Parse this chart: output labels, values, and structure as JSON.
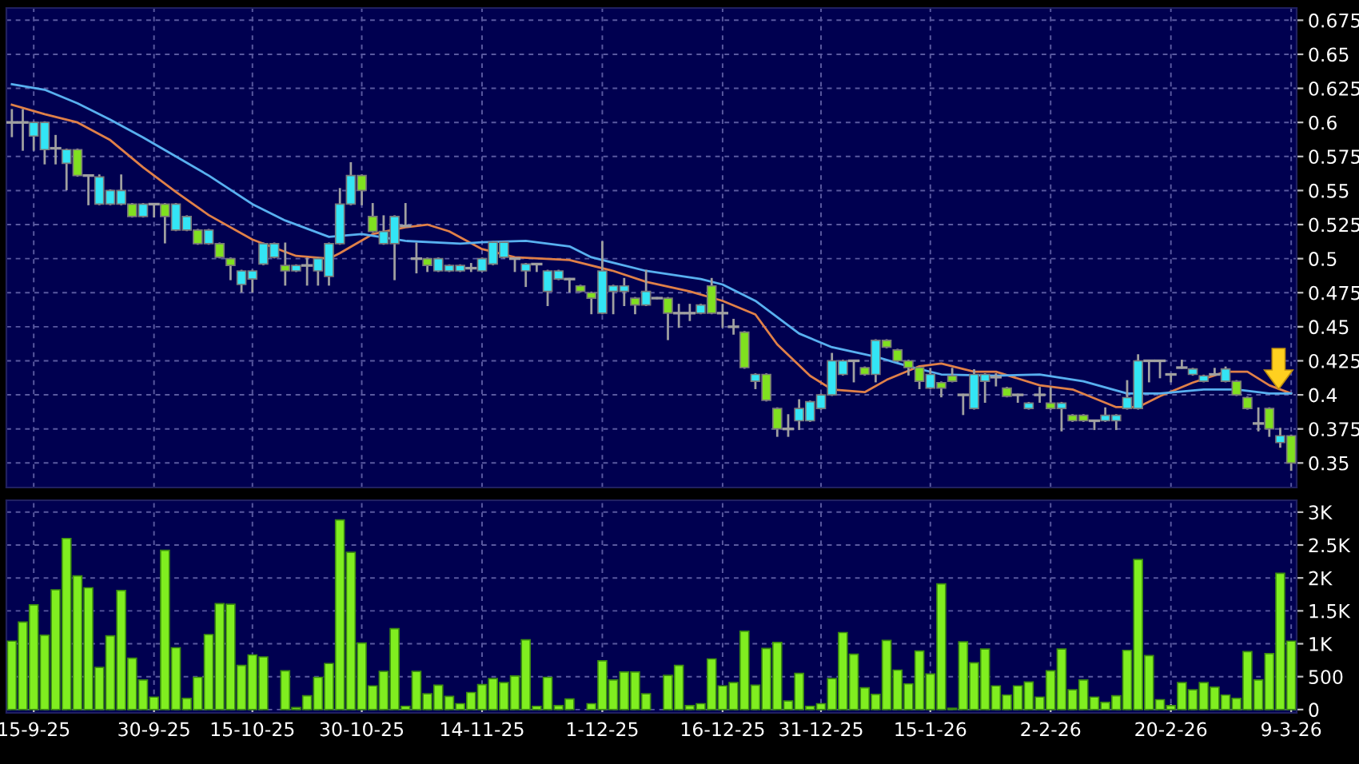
{
  "chart_data": [
    {
      "type": "candlestick",
      "categories": [
        null,
        null,
        null,
        null,
        null,
        null,
        null,
        null,
        null,
        null,
        null,
        null,
        null,
        null,
        null,
        null,
        null,
        null,
        null,
        null,
        null,
        null,
        null,
        null,
        null,
        null,
        null,
        null,
        null,
        null,
        null,
        null,
        null,
        null,
        null,
        null,
        null,
        null,
        null,
        null,
        null,
        null,
        null,
        null,
        null,
        null,
        null,
        null,
        null,
        null,
        null,
        null,
        null,
        null,
        null,
        null,
        null,
        null,
        null,
        null,
        null,
        null,
        null,
        null,
        null,
        null,
        null,
        null,
        null,
        null,
        null,
        null,
        null,
        null,
        null,
        null,
        null,
        null,
        null,
        null,
        null,
        null,
        null,
        null,
        null,
        null,
        null,
        null,
        null,
        null,
        null,
        null,
        null,
        null,
        null,
        null,
        null,
        null,
        null,
        null,
        null,
        null,
        null,
        null,
        null,
        null,
        null,
        null,
        null,
        null,
        null,
        null,
        null,
        null,
        null,
        null,
        null,
        null
      ],
      "ohlc": [
        [
          0.6,
          0.609,
          0.59,
          0.6
        ],
        [
          0.6,
          0.609,
          0.58,
          0.6
        ],
        [
          0.59,
          0.6,
          0.58,
          0.6
        ],
        [
          0.58,
          0.6,
          0.57,
          0.6
        ],
        [
          0.581,
          0.59,
          0.57,
          0.581
        ],
        [
          0.57,
          0.58,
          0.551,
          0.58
        ],
        [
          0.58,
          0.58,
          0.561,
          0.561
        ],
        [
          0.561,
          0.561,
          0.54,
          0.561
        ],
        [
          0.54,
          0.561,
          0.54,
          0.56
        ],
        [
          0.54,
          0.55,
          0.54,
          0.55
        ],
        [
          0.54,
          0.561,
          0.54,
          0.55
        ],
        [
          0.54,
          0.54,
          0.531,
          0.531
        ],
        [
          0.531,
          0.54,
          0.531,
          0.54
        ],
        [
          0.54,
          0.54,
          0.531,
          0.54
        ],
        [
          0.54,
          0.54,
          0.512,
          0.531
        ],
        [
          0.521,
          0.54,
          0.521,
          0.54
        ],
        [
          0.521,
          0.531,
          0.521,
          0.531
        ],
        [
          0.521,
          0.521,
          0.511,
          0.511
        ],
        [
          0.511,
          0.521,
          0.511,
          0.521
        ],
        [
          0.511,
          0.511,
          0.501,
          0.501
        ],
        [
          0.5,
          0.5,
          0.485,
          0.495
        ],
        [
          0.481,
          0.491,
          0.476,
          0.491
        ],
        [
          0.485,
          0.491,
          0.476,
          0.491
        ],
        [
          0.496,
          0.511,
          0.496,
          0.511
        ],
        [
          0.501,
          0.511,
          0.501,
          0.511
        ],
        [
          0.495,
          0.511,
          0.481,
          0.491
        ],
        [
          0.491,
          0.495,
          0.491,
          0.495
        ],
        [
          0.495,
          0.5,
          0.481,
          0.495
        ],
        [
          0.491,
          0.5,
          0.481,
          0.5
        ],
        [
          0.487,
          0.511,
          0.481,
          0.511
        ],
        [
          0.511,
          0.551,
          0.511,
          0.54
        ],
        [
          0.54,
          0.57,
          0.54,
          0.561
        ],
        [
          0.561,
          0.561,
          0.54,
          0.55
        ],
        [
          0.531,
          0.54,
          0.52,
          0.52
        ],
        [
          0.511,
          0.531,
          0.511,
          0.52
        ],
        [
          0.511,
          0.531,
          0.485,
          0.531
        ],
        [
          0.524,
          0.54,
          0.524,
          0.524
        ],
        [
          0.5,
          0.511,
          0.49,
          0.5
        ],
        [
          0.5,
          0.5,
          0.491,
          0.495
        ],
        [
          0.491,
          0.5,
          0.491,
          0.5
        ],
        [
          0.491,
          0.495,
          0.491,
          0.495
        ],
        [
          0.491,
          0.495,
          0.491,
          0.495
        ],
        [
          0.493,
          0.496,
          0.491,
          0.493
        ],
        [
          0.491,
          0.5,
          0.491,
          0.5
        ],
        [
          0.496,
          0.512,
          0.496,
          0.512
        ],
        [
          0.501,
          0.512,
          0.501,
          0.512
        ],
        [
          0.5,
          0.5,
          0.491,
          0.5
        ],
        [
          0.491,
          0.496,
          0.48,
          0.496
        ],
        [
          0.496,
          0.496,
          0.491,
          0.496
        ],
        [
          0.476,
          0.491,
          0.466,
          0.491
        ],
        [
          0.485,
          0.491,
          0.485,
          0.491
        ],
        [
          0.485,
          0.485,
          0.476,
          0.485
        ],
        [
          0.48,
          0.48,
          0.476,
          0.476
        ],
        [
          0.475,
          0.475,
          0.46,
          0.471
        ],
        [
          0.46,
          0.512,
          0.46,
          0.491
        ],
        [
          0.476,
          0.48,
          0.46,
          0.48
        ],
        [
          0.476,
          0.485,
          0.466,
          0.48
        ],
        [
          0.471,
          0.471,
          0.46,
          0.466
        ],
        [
          0.466,
          0.491,
          0.466,
          0.476
        ],
        [
          0.471,
          0.471,
          0.471,
          0.471
        ],
        [
          0.471,
          0.471,
          0.441,
          0.46
        ],
        [
          0.46,
          0.466,
          0.45,
          0.46
        ],
        [
          0.46,
          0.466,
          0.455,
          0.46
        ],
        [
          0.46,
          0.466,
          0.46,
          0.466
        ],
        [
          0.48,
          0.485,
          0.46,
          0.46
        ],
        [
          0.46,
          0.466,
          0.45,
          0.46
        ],
        [
          0.45,
          0.455,
          0.445,
          0.45
        ],
        [
          0.446,
          0.446,
          0.42,
          0.42
        ],
        [
          0.41,
          0.415,
          0.405,
          0.415
        ],
        [
          0.415,
          0.415,
          0.396,
          0.396
        ],
        [
          0.39,
          0.39,
          0.37,
          0.375
        ],
        [
          0.375,
          0.385,
          0.37,
          0.375
        ],
        [
          0.381,
          0.396,
          0.375,
          0.39
        ],
        [
          0.381,
          0.395,
          0.381,
          0.395
        ],
        [
          0.39,
          0.4,
          0.39,
          0.4
        ],
        [
          0.4,
          0.43,
          0.4,
          0.425
        ],
        [
          0.415,
          0.425,
          0.415,
          0.425
        ],
        [
          0.425,
          0.425,
          0.41,
          0.425
        ],
        [
          0.42,
          0.42,
          0.415,
          0.415
        ],
        [
          0.415,
          0.44,
          0.41,
          0.44
        ],
        [
          0.44,
          0.44,
          0.435,
          0.435
        ],
        [
          0.433,
          0.433,
          0.425,
          0.425
        ],
        [
          0.425,
          0.425,
          0.415,
          0.42
        ],
        [
          0.42,
          0.42,
          0.405,
          0.41
        ],
        [
          0.405,
          0.419,
          0.405,
          0.415
        ],
        [
          0.409,
          0.409,
          0.399,
          0.405
        ],
        [
          0.414,
          0.419,
          0.41,
          0.41
        ],
        [
          0.4,
          0.4,
          0.386,
          0.4
        ],
        [
          0.39,
          0.418,
          0.39,
          0.415
        ],
        [
          0.41,
          0.415,
          0.395,
          0.415
        ],
        [
          0.413,
          0.415,
          0.407,
          0.413
        ],
        [
          0.405,
          0.405,
          0.399,
          0.399
        ],
        [
          0.4,
          0.4,
          0.395,
          0.4
        ],
        [
          0.39,
          0.394,
          0.39,
          0.394
        ],
        [
          0.4,
          0.405,
          0.395,
          0.4
        ],
        [
          0.394,
          0.405,
          0.39,
          0.39
        ],
        [
          0.39,
          0.394,
          0.374,
          0.394
        ],
        [
          0.385,
          0.385,
          0.381,
          0.381
        ],
        [
          0.385,
          0.385,
          0.381,
          0.381
        ],
        [
          0.381,
          0.381,
          0.375,
          0.381
        ],
        [
          0.381,
          0.39,
          0.381,
          0.385
        ],
        [
          0.381,
          0.385,
          0.375,
          0.385
        ],
        [
          0.39,
          0.41,
          0.39,
          0.398
        ],
        [
          0.39,
          0.429,
          0.39,
          0.425
        ],
        [
          0.425,
          0.425,
          0.41,
          0.425
        ],
        [
          0.425,
          0.425,
          0.413,
          0.425
        ],
        [
          0.415,
          0.415,
          0.41,
          0.415
        ],
        [
          0.42,
          0.425,
          0.42,
          0.42
        ],
        [
          0.415,
          0.419,
          0.415,
          0.419
        ],
        [
          0.41,
          0.414,
          0.41,
          0.414
        ],
        [
          0.415,
          0.419,
          0.415,
          0.415
        ],
        [
          0.41,
          0.42,
          0.41,
          0.419
        ],
        [
          0.41,
          0.41,
          0.4,
          0.4
        ],
        [
          0.398,
          0.398,
          0.39,
          0.39
        ],
        [
          0.379,
          0.39,
          0.374,
          0.379
        ],
        [
          0.39,
          0.39,
          0.37,
          0.375
        ],
        [
          0.365,
          0.375,
          0.362,
          0.37
        ],
        [
          0.37,
          0.37,
          0.345,
          0.35
        ]
      ],
      "colors": [
        "#a0a0a0",
        "#a0a0a0",
        "#33e5f5",
        "#33e5f5",
        "#a0a0a0",
        "#33e5f5",
        "#80e020",
        "#a0a0a0",
        "#33e5f5",
        "#33e5f5",
        "#33e5f5",
        "#80e020",
        "#33e5f5",
        "#a0a0a0",
        "#80e020",
        "#33e5f5",
        "#33e5f5",
        "#80e020",
        "#33e5f5",
        "#80e020",
        "#80e020",
        "#33e5f5",
        "#33e5f5",
        "#33e5f5",
        "#33e5f5",
        "#80e020",
        "#33e5f5",
        "#a0a0a0",
        "#33e5f5",
        "#33e5f5",
        "#33e5f5",
        "#33e5f5",
        "#80e020",
        "#80e020",
        "#33e5f5",
        "#33e5f5",
        "#a0a0a0",
        "#a0a0a0",
        "#80e020",
        "#33e5f5",
        "#33e5f5",
        "#33e5f5",
        "#a0a0a0",
        "#33e5f5",
        "#33e5f5",
        "#33e5f5",
        "#a0a0a0",
        "#33e5f5",
        "#a0a0a0",
        "#33e5f5",
        "#33e5f5",
        "#a0a0a0",
        "#80e020",
        "#80e020",
        "#33e5f5",
        "#33e5f5",
        "#33e5f5",
        "#80e020",
        "#33e5f5",
        "#a0a0a0",
        "#80e020",
        "#a0a0a0",
        "#a0a0a0",
        "#33e5f5",
        "#80e020",
        "#a0a0a0",
        "#a0a0a0",
        "#80e020",
        "#33e5f5",
        "#80e020",
        "#80e020",
        "#a0a0a0",
        "#33e5f5",
        "#33e5f5",
        "#33e5f5",
        "#33e5f5",
        "#33e5f5",
        "#a0a0a0",
        "#80e020",
        "#33e5f5",
        "#80e020",
        "#80e020",
        "#80e020",
        "#80e020",
        "#33e5f5",
        "#80e020",
        "#80e020",
        "#a0a0a0",
        "#33e5f5",
        "#33e5f5",
        "#a0a0a0",
        "#80e020",
        "#a0a0a0",
        "#33e5f5",
        "#a0a0a0",
        "#80e020",
        "#33e5f5",
        "#80e020",
        "#80e020",
        "#a0a0a0",
        "#33e5f5",
        "#33e5f5",
        "#33e5f5",
        "#33e5f5",
        "#a0a0a0",
        "#a0a0a0",
        "#a0a0a0",
        "#a0a0a0",
        "#33e5f5",
        "#33e5f5",
        "#a0a0a0",
        "#33e5f5",
        "#80e020",
        "#80e020",
        "#a0a0a0",
        "#80e020",
        "#33e5f5",
        "#80e020"
      ],
      "series": [
        {
          "type": "line",
          "color": "#e08048",
          "values": [
            0.613,
            null,
            null,
            0.606,
            null,
            null,
            0.6,
            null,
            null,
            0.587,
            null,
            null,
            0.567,
            null,
            null,
            0.549,
            null,
            null,
            0.532,
            null,
            null,
            null,
            0.514,
            null,
            null,
            null,
            0.502,
            null,
            null,
            0.5,
            0.504,
            null,
            null,
            0.518,
            null,
            null,
            0.523,
            null,
            0.525,
            null,
            0.52,
            null,
            null,
            0.507,
            null,
            null,
            0.501,
            null,
            null,
            null,
            null,
            0.499,
            null,
            null,
            null,
            0.491,
            null,
            null,
            0.483,
            null,
            null,
            null,
            0.476,
            null,
            null,
            0.469,
            null,
            null,
            0.459,
            null,
            0.437,
            null,
            null,
            0.414,
            null,
            0.404,
            null,
            null,
            0.402,
            null,
            0.411,
            null,
            null,
            0.421,
            null,
            0.423,
            null,
            null,
            0.417,
            null,
            0.417,
            null,
            null,
            null,
            0.407,
            null,
            null,
            0.404,
            null,
            null,
            null,
            0.391,
            null,
            0.391,
            null,
            0.399,
            null,
            null,
            0.409,
            null,
            null,
            0.417,
            null,
            0.417,
            null,
            0.407,
            null,
            0.401
          ]
        },
        {
          "type": "line",
          "color": "#58b0f0",
          "values": [
            0.628,
            null,
            null,
            0.624,
            null,
            null,
            0.614,
            null,
            null,
            0.602,
            null,
            null,
            0.589,
            null,
            null,
            0.575,
            null,
            null,
            0.561,
            null,
            null,
            null,
            0.54,
            null,
            null,
            0.528,
            null,
            null,
            null,
            0.516,
            null,
            null,
            0.518,
            null,
            null,
            null,
            0.513,
            null,
            null,
            null,
            null,
            0.511,
            null,
            0.512,
            null,
            null,
            null,
            0.513,
            null,
            null,
            null,
            0.509,
            null,
            0.501,
            null,
            null,
            null,
            null,
            0.491,
            null,
            null,
            null,
            null,
            0.485,
            null,
            0.481,
            null,
            null,
            0.469,
            null,
            null,
            null,
            0.445,
            null,
            null,
            0.435,
            null,
            null,
            null,
            0.428,
            null,
            null,
            0.421,
            null,
            null,
            0.415,
            null,
            null,
            null,
            null,
            0.414,
            null,
            null,
            null,
            0.415,
            null,
            null,
            null,
            0.41,
            null,
            null,
            null,
            0.401,
            null,
            null,
            0.401,
            null,
            null,
            null,
            0.404,
            null,
            null,
            0.404,
            null,
            null,
            0.401,
            null,
            0.401
          ]
        }
      ],
      "ylim": [
        0.332,
        0.684
      ],
      "yticks": [
        0.35,
        0.375,
        0.4,
        0.425,
        0.45,
        0.475,
        0.5,
        0.525,
        0.55,
        0.575,
        0.6,
        0.625,
        0.65,
        0.675
      ],
      "grid": true,
      "tick_labels": "y"
    },
    {
      "type": "bar",
      "categories": [
        null,
        null,
        "15-9-25",
        null,
        null,
        null,
        null,
        null,
        null,
        null,
        null,
        null,
        null,
        "30-9-25",
        null,
        null,
        null,
        null,
        null,
        null,
        null,
        null,
        "15-10-25",
        null,
        null,
        null,
        null,
        null,
        null,
        null,
        null,
        null,
        "30-10-25",
        null,
        null,
        null,
        null,
        null,
        null,
        null,
        null,
        null,
        null,
        "14-11-25",
        null,
        null,
        null,
        null,
        null,
        null,
        null,
        null,
        null,
        null,
        "1-12-25",
        null,
        null,
        null,
        null,
        null,
        null,
        null,
        null,
        null,
        null,
        "16-12-25",
        null,
        null,
        null,
        null,
        null,
        null,
        null,
        null,
        "31-12-25",
        null,
        null,
        null,
        null,
        null,
        null,
        null,
        null,
        null,
        "15-1-26",
        null,
        null,
        null,
        null,
        null,
        null,
        null,
        null,
        null,
        null,
        "2-2-26",
        null,
        null,
        null,
        null,
        null,
        null,
        null,
        null,
        null,
        null,
        "20-2-26",
        null,
        null,
        null,
        null,
        null,
        null,
        null,
        null,
        null,
        null,
        "9-3-26"
      ],
      "values": [
        1040,
        1330,
        1590,
        1130,
        1820,
        2600,
        2030,
        1850,
        640,
        1120,
        1810,
        780,
        450,
        190,
        2420,
        940,
        170,
        490,
        1140,
        1610,
        1600,
        670,
        830,
        800,
        0,
        590,
        30,
        210,
        490,
        700,
        2880,
        2390,
        1010,
        360,
        580,
        1230,
        50,
        580,
        240,
        370,
        200,
        90,
        260,
        380,
        470,
        410,
        510,
        1060,
        50,
        490,
        60,
        160,
        0,
        90,
        740,
        450,
        570,
        570,
        240,
        0,
        520,
        670,
        60,
        90,
        770,
        360,
        410,
        1190,
        370,
        930,
        1020,
        130,
        550,
        50,
        90,
        470,
        1170,
        840,
        330,
        230,
        1050,
        600,
        390,
        890,
        540,
        1910,
        20,
        1030,
        710,
        920,
        360,
        220,
        360,
        420,
        190,
        590,
        920,
        300,
        450,
        190,
        110,
        210,
        900,
        2280,
        820,
        150,
        60,
        410,
        300,
        410,
        340,
        220,
        170,
        880,
        450,
        850,
        2070,
        1040
      ],
      "color": "#80ee20",
      "ylim": [
        -50,
        3180
      ],
      "yticks": [
        0,
        500,
        {
          "value": 1000,
          "label": "1K"
        },
        {
          "value": 1500,
          "label": "1.5K"
        },
        {
          "value": 2000,
          "label": "2K"
        },
        {
          "value": 2500,
          "label": "2.5K"
        },
        {
          "value": 3000,
          "label": "3K"
        }
      ],
      "grid": true
    }
  ]
}
